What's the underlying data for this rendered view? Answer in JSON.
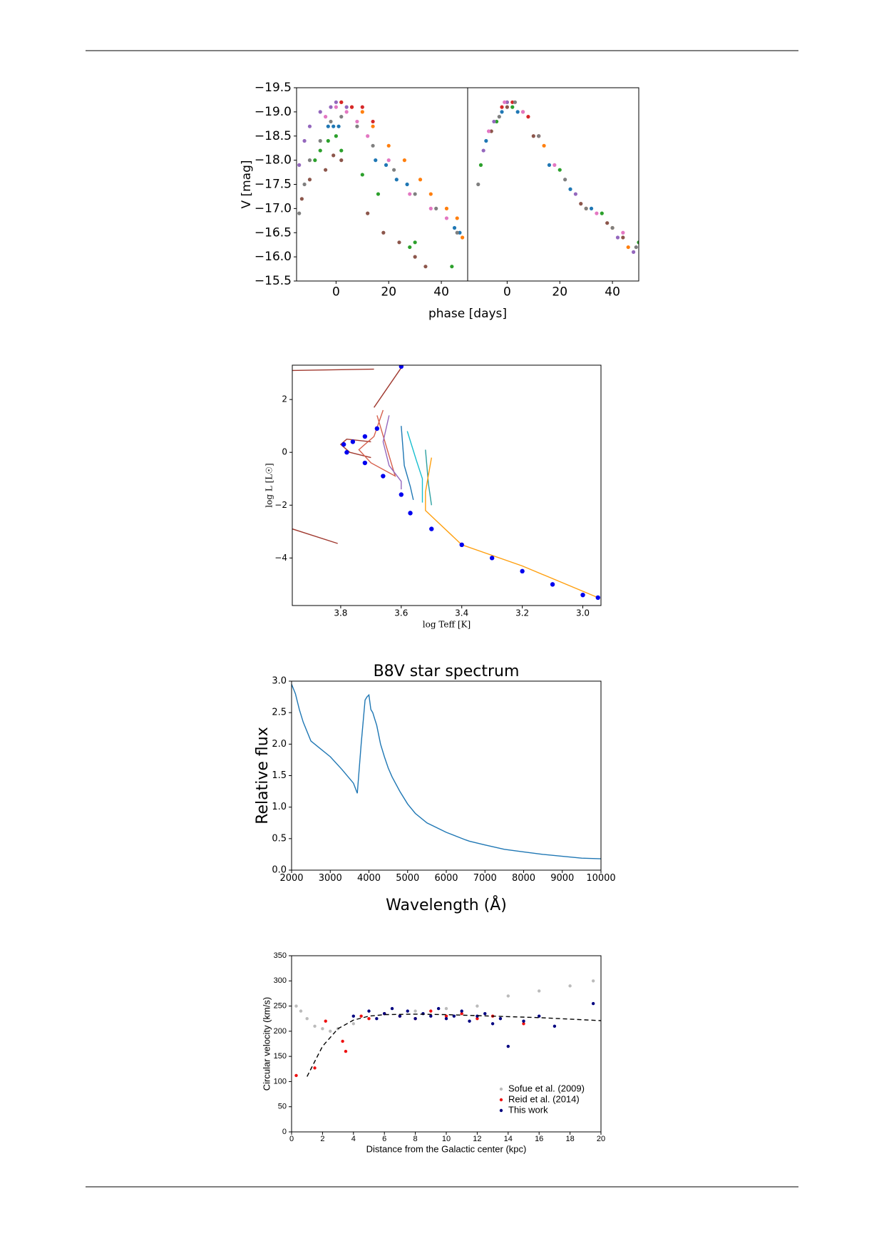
{
  "chart_data": [
    {
      "type": "scatter",
      "ylabel": "V [mag]",
      "xlabel": "phase [days]",
      "xlim": [
        -15,
        50
      ],
      "ylim": [
        -15.5,
        -19.5
      ],
      "xticks": [
        0,
        20,
        40
      ],
      "yticks": [
        {
          "value": -19.5,
          "label": "−19.5"
        },
        {
          "value": -19.0,
          "label": "−19.0"
        },
        {
          "value": -18.5,
          "label": "−18.5"
        },
        {
          "value": -18.0,
          "label": "−18.0"
        },
        {
          "value": -17.5,
          "label": "−17.5"
        },
        {
          "value": -17.0,
          "label": "−17.0"
        },
        {
          "value": -16.5,
          "label": "−16.5"
        },
        {
          "value": -16.0,
          "label": "−16.0"
        },
        {
          "value": -15.5,
          "label": "−15.5"
        }
      ],
      "series": [
        {
          "color": "#1f77b4",
          "x": [
            -3,
            -1,
            1,
            15,
            19,
            23,
            27,
            45,
            47
          ],
          "values": [
            -18.7,
            -18.7,
            -18.7,
            -18.0,
            -17.9,
            -17.6,
            -17.5,
            -16.6,
            -16.5
          ]
        },
        {
          "color": "#ff7f0e",
          "x": [
            2,
            6,
            10,
            14,
            20,
            26,
            32,
            36,
            42,
            46,
            48
          ],
          "values": [
            -19.2,
            -19.1,
            -19.0,
            -18.7,
            -18.3,
            -18.0,
            -17.6,
            -17.3,
            -17.0,
            -16.8,
            -16.4
          ]
        },
        {
          "color": "#2ca02c",
          "x": [
            -8,
            -6,
            -3,
            0,
            2,
            10,
            16,
            28,
            30,
            44
          ],
          "values": [
            -18.0,
            -18.2,
            -18.4,
            -18.5,
            -18.2,
            -17.7,
            -17.3,
            -16.2,
            -16.3,
            -15.8
          ]
        },
        {
          "color": "#d62728",
          "x": [
            2,
            6,
            10,
            14
          ],
          "values": [
            -19.2,
            -19.1,
            -19.1,
            -18.8
          ]
        },
        {
          "color": "#9467bd",
          "x": [
            -14,
            -12,
            -10,
            -6,
            -2,
            0,
            4
          ],
          "values": [
            -17.9,
            -18.4,
            -18.7,
            -19.0,
            -19.1,
            -19.2,
            -19.1
          ]
        },
        {
          "color": "#8c564b",
          "x": [
            -13,
            -10,
            -4,
            -1,
            2,
            12,
            18,
            24,
            30,
            34
          ],
          "values": [
            -17.2,
            -17.6,
            -17.8,
            -18.1,
            -18.0,
            -16.9,
            -16.5,
            -16.3,
            -16.0,
            -15.8
          ]
        },
        {
          "color": "#e377c2",
          "x": [
            -4,
            0,
            4,
            8,
            12,
            20,
            28,
            36,
            42
          ],
          "values": [
            -18.9,
            -19.1,
            -19.0,
            -18.8,
            -18.5,
            -18.0,
            -17.3,
            -17.0,
            -16.8
          ]
        },
        {
          "color": "#7f7f7f",
          "x": [
            -14,
            -12,
            -10,
            -6,
            -2,
            2,
            8,
            14,
            22,
            30,
            38,
            46
          ],
          "values": [
            -16.9,
            -17.5,
            -18.0,
            -18.4,
            -18.8,
            -18.9,
            -18.7,
            -18.3,
            -17.8,
            -17.3,
            -17.0,
            -16.5
          ]
        }
      ]
    },
    {
      "type": "scatter",
      "xlim": [
        -15,
        50
      ],
      "ylim": [
        -15.5,
        -19.5
      ],
      "xticks": [
        0,
        20,
        40
      ],
      "series": [
        {
          "color": "#1f77b4",
          "x": [
            -8,
            -2,
            4,
            16,
            24,
            32
          ],
          "values": [
            -18.4,
            -19.0,
            -19.0,
            -17.9,
            -17.4,
            -17.0
          ]
        },
        {
          "color": "#ff7f0e",
          "x": [
            0,
            6,
            14,
            30,
            40,
            46
          ],
          "values": [
            -19.2,
            -19.0,
            -18.3,
            -17.0,
            -16.6,
            -16.2
          ]
        },
        {
          "color": "#2ca02c",
          "x": [
            -10,
            -4,
            2,
            20,
            36,
            50
          ],
          "values": [
            -17.9,
            -18.8,
            -19.1,
            -17.8,
            -16.9,
            -16.3
          ]
        },
        {
          "color": "#d62728",
          "x": [
            -2,
            2,
            8,
            12
          ],
          "values": [
            -19.1,
            -19.2,
            -18.9,
            -18.5
          ]
        },
        {
          "color": "#9467bd",
          "x": [
            -9,
            -5,
            0,
            26,
            42,
            48
          ],
          "values": [
            -18.2,
            -18.8,
            -19.2,
            -17.3,
            -16.4,
            -16.1
          ]
        },
        {
          "color": "#8c564b",
          "x": [
            -6,
            0,
            10,
            28,
            38,
            44
          ],
          "values": [
            -18.6,
            -19.1,
            -18.5,
            -17.1,
            -16.7,
            -16.4
          ]
        },
        {
          "color": "#e377c2",
          "x": [
            -7,
            -1,
            6,
            18,
            34,
            44
          ],
          "values": [
            -18.6,
            -19.2,
            -19.0,
            -17.9,
            -16.9,
            -16.5
          ]
        },
        {
          "color": "#7f7f7f",
          "x": [
            -11,
            -3,
            3,
            12,
            22,
            30,
            40,
            49
          ],
          "values": [
            -17.5,
            -18.9,
            -19.2,
            -18.5,
            -17.6,
            -17.0,
            -16.6,
            -16.2
          ]
        }
      ]
    },
    {
      "type": "line",
      "xlabel": "log Teff [K]",
      "ylabel": "log L [L☉]",
      "xlim": [
        3.96,
        2.94
      ],
      "ylim": [
        -5.8,
        3.3
      ],
      "xticks": [
        3.8,
        3.6,
        3.4,
        3.2,
        {
          "value": 3,
          "label": "3.0"
        }
      ],
      "yticks": [
        {
          "value": -4,
          "label": "−4"
        },
        {
          "value": -2,
          "label": "−2"
        },
        0,
        2
      ],
      "series": [
        {
          "color": "#a0392f",
          "x": [
            3.96,
            3.69
          ],
          "values": [
            3.1,
            3.15
          ]
        },
        {
          "color": "#a0392f",
          "x": [
            3.69,
            3.6
          ],
          "values": [
            1.7,
            3.2
          ]
        },
        {
          "color": "#a0392f",
          "x": [
            3.96,
            3.81
          ],
          "values": [
            -2.9,
            -3.45
          ]
        },
        {
          "color": "#a0392f",
          "x": [
            3.7,
            3.78,
            3.8,
            3.77,
            3.7
          ],
          "values": [
            0.4,
            0.5,
            0.3,
            0.0,
            -0.2
          ]
        },
        {
          "color": "#d6604d",
          "x": [
            3.66,
            3.69,
            3.74,
            3.7,
            3.62,
            3.68
          ],
          "values": [
            1.6,
            0.6,
            0.1,
            -0.4,
            -0.9,
            1.4
          ]
        },
        {
          "color": "#9467bd",
          "x": [
            3.64,
            3.66,
            3.64,
            3.6,
            3.6
          ],
          "values": [
            1.4,
            0.4,
            -0.5,
            -1.1,
            -1.4
          ]
        },
        {
          "color": "#1f77b4",
          "x": [
            3.6,
            3.59,
            3.57,
            3.56
          ],
          "values": [
            1.0,
            -0.5,
            -1.3,
            -1.8
          ]
        },
        {
          "color": "#17becf",
          "x": [
            3.58,
            3.55,
            3.53,
            3.53
          ],
          "values": [
            0.8,
            -0.3,
            -1.0,
            -1.9
          ]
        },
        {
          "color": "#2ca0a0",
          "x": [
            3.52,
            3.51,
            3.5
          ],
          "values": [
            0.1,
            -1.2,
            -2.0
          ]
        },
        {
          "color": "#ff9f0e",
          "x": [
            3.5,
            3.52,
            3.52,
            3.4,
            3.2,
            2.95
          ],
          "values": [
            -0.2,
            -1.5,
            -2.2,
            -3.5,
            -4.3,
            -5.5
          ]
        },
        {
          "color": "#0000ee",
          "marker": "dots",
          "x": [
            3.6,
            3.68,
            3.72,
            3.76,
            3.79,
            3.78,
            3.72,
            3.66,
            3.6,
            3.57,
            3.5,
            3.4,
            3.3,
            3.2,
            3.1,
            3.0,
            2.95
          ],
          "values": [
            3.25,
            0.9,
            0.6,
            0.4,
            0.3,
            0.0,
            -0.4,
            -0.9,
            -1.6,
            -2.3,
            -2.9,
            -3.5,
            -4.0,
            -4.5,
            -5.0,
            -5.4,
            -5.5
          ]
        }
      ]
    },
    {
      "type": "line",
      "title": "B8V star spectrum",
      "xlabel": "Wavelength (Å)",
      "ylabel": "Relative flux",
      "xlim": [
        2000,
        10000
      ],
      "ylim": [
        0,
        3
      ],
      "xticks": [
        2000,
        3000,
        4000,
        5000,
        6000,
        7000,
        8000,
        9000,
        10000
      ],
      "yticks": [
        {
          "value": 0,
          "label": "0.0"
        },
        0.5,
        {
          "value": 1,
          "label": "1.0"
        },
        1.5,
        {
          "value": 2,
          "label": "2.0"
        },
        2.5,
        {
          "value": 3,
          "label": "3.0"
        }
      ],
      "series": [
        {
          "color": "#1f77b4",
          "x": [
            2000,
            2100,
            2200,
            2300,
            2500,
            2700,
            3000,
            3300,
            3600,
            3700,
            3800,
            3900,
            3950,
            4000,
            4050,
            4100,
            4150,
            4200,
            4300,
            4400,
            4500,
            4600,
            4800,
            5000,
            5200,
            5500,
            6000,
            6500,
            6600,
            7000,
            7500,
            8000,
            8500,
            9000,
            9500,
            10000
          ],
          "values": [
            2.95,
            2.8,
            2.55,
            2.35,
            2.05,
            1.95,
            1.8,
            1.6,
            1.38,
            1.22,
            2.0,
            2.7,
            2.75,
            2.78,
            2.55,
            2.5,
            2.4,
            2.3,
            2.0,
            1.8,
            1.62,
            1.48,
            1.25,
            1.05,
            0.9,
            0.75,
            0.6,
            0.48,
            0.46,
            0.4,
            0.33,
            0.29,
            0.25,
            0.22,
            0.19,
            0.18
          ]
        }
      ]
    },
    {
      "type": "scatter",
      "xlabel": "Distance from the Galactic center (kpc)",
      "ylabel": "Circular velocity (km/s)",
      "xlim": [
        0,
        20
      ],
      "ylim": [
        0,
        350
      ],
      "xticks": [
        0,
        2,
        4,
        6,
        8,
        10,
        12,
        14,
        16,
        18,
        20
      ],
      "yticks": [
        0,
        50,
        100,
        150,
        200,
        250,
        300,
        350
      ],
      "legend": "lower right",
      "series": [
        {
          "name": "Sofue et al. (2009)",
          "color": "#bbbbbb",
          "x": [
            0.3,
            0.6,
            1.0,
            1.5,
            2.0,
            2.5,
            3.0,
            4,
            6,
            8,
            10,
            12,
            14,
            16,
            18,
            19.5
          ],
          "values": [
            250,
            240,
            225,
            210,
            205,
            200,
            205,
            215,
            235,
            240,
            245,
            250,
            270,
            280,
            290,
            300
          ]
        },
        {
          "name": "Reid et al. (2014)",
          "color": "#ee1111",
          "x": [
            0.3,
            1.5,
            2.2,
            3.3,
            3.5,
            4.5,
            5,
            6,
            7,
            8,
            9,
            10,
            11,
            12,
            13,
            15
          ],
          "values": [
            112,
            127,
            220,
            180,
            160,
            230,
            225,
            235,
            230,
            225,
            240,
            230,
            235,
            225,
            230,
            215
          ]
        },
        {
          "name": "This work",
          "color": "#000080",
          "x": [
            4,
            5,
            5.5,
            6,
            6.5,
            7,
            7.5,
            8,
            8.5,
            9,
            9.5,
            10,
            10.5,
            11,
            11.5,
            12,
            12.5,
            13,
            13.5,
            14,
            15,
            16,
            17,
            19.5
          ],
          "values": [
            230,
            240,
            225,
            235,
            245,
            230,
            240,
            225,
            235,
            230,
            245,
            225,
            230,
            240,
            220,
            230,
            235,
            215,
            225,
            170,
            220,
            230,
            210,
            255
          ]
        },
        {
          "color": "#000000",
          "line": "dashed",
          "x": [
            1,
            2,
            3,
            4,
            5,
            6,
            8,
            10,
            12,
            14,
            16,
            18,
            20
          ],
          "values": [
            110,
            170,
            205,
            222,
            230,
            233,
            234,
            233,
            231,
            229,
            227,
            224,
            221
          ]
        }
      ]
    }
  ]
}
